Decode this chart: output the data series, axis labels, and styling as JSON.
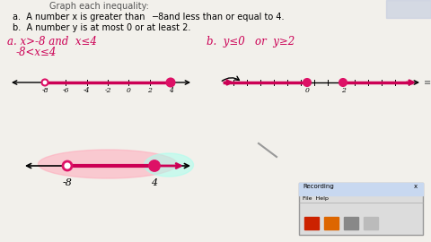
{
  "bg_color": "#f2f0eb",
  "problem_a": "a.  A number x is greater than −8 and less than or equal to 4.",
  "problem_b": "b.  A number y is at most 0 or at least 2.",
  "hw_color": "#cc0055",
  "line_color": "#cc0055",
  "dot_color": "#dd1166",
  "highlight_pink": "#ffaabb",
  "highlight_cyan": "#aaffee",
  "nl_a_ticks": [
    -8,
    -6,
    -4,
    -2,
    0,
    2,
    4
  ],
  "nl_b_labels": [
    0,
    2
  ],
  "dialog_color": "#e0e0e0",
  "scroll_color": "#888888"
}
